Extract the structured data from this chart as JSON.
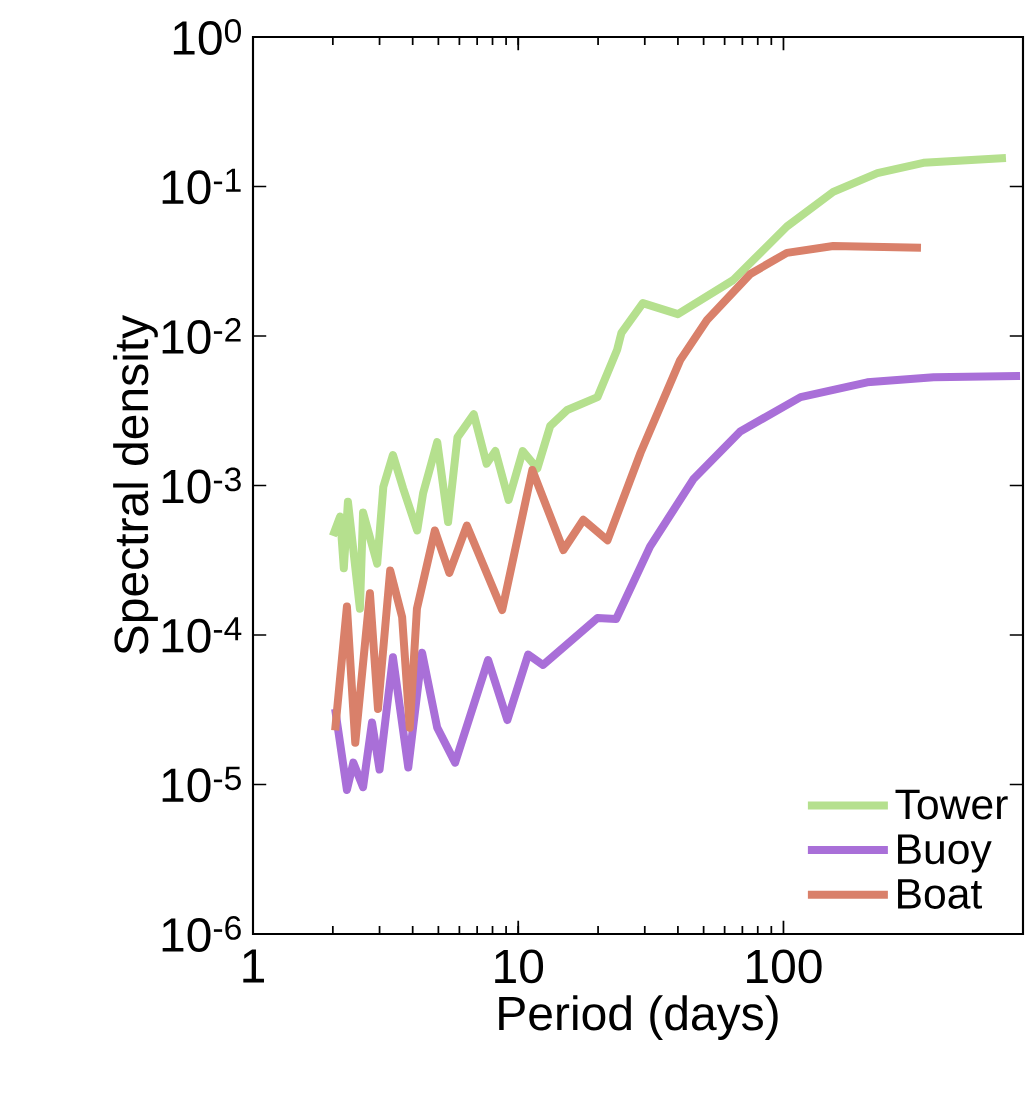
{
  "chart_data": {
    "type": "line",
    "xlabel": "Period (days)",
    "ylabel": "Spectral density",
    "log": "xy",
    "xlim": [
      1,
      800
    ],
    "ylim": [
      1e-06,
      1
    ],
    "xticks": [
      1,
      10,
      100
    ],
    "yticks": [
      {
        "value": 1,
        "label": "10$^{0}$"
      },
      {
        "value": 0.1,
        "label": "10$^{-1}$"
      },
      {
        "value": 0.01,
        "label": "10$^{-2}$"
      },
      {
        "value": 0.001,
        "label": "10$^{-3}$"
      },
      {
        "value": 0.0001,
        "label": "10$^{-4}$"
      },
      {
        "value": 1e-05,
        "label": "10$^{-5}$"
      },
      {
        "value": 1e-06,
        "label": "10$^{-6}$"
      }
    ],
    "legend": "bottom right",
    "series": [
      {
        "name": "Tower",
        "color": "#b5e08e",
        "x": [
          2.0,
          2.13,
          2.2,
          2.28,
          2.53,
          2.6,
          2.94,
          3.1,
          3.37,
          3.68,
          4.16,
          4.38,
          4.95,
          5.44,
          5.9,
          6.8,
          7.6,
          8.2,
          9.2,
          10.4,
          11.8,
          13.2,
          15.3,
          19.9,
          23.6,
          24.5,
          29.5,
          40,
          64.5,
          103,
          154,
          226,
          337,
          690
        ],
        "values": [
          0.00046,
          0.00062,
          0.00028,
          0.00078,
          0.00015,
          0.00066,
          0.0003,
          0.00098,
          0.0016,
          0.00096,
          0.0005,
          0.00089,
          0.00195,
          0.00057,
          0.0021,
          0.003,
          0.0014,
          0.0017,
          0.0008,
          0.0017,
          0.0013,
          0.0025,
          0.0032,
          0.0039,
          0.0081,
          0.0105,
          0.0166,
          0.014,
          0.0236,
          0.054,
          0.092,
          0.123,
          0.144,
          0.155
        ]
      },
      {
        "name": "Buoy",
        "color": "#a96fd8",
        "x": [
          2.04,
          2.26,
          2.39,
          2.6,
          2.81,
          3.0,
          3.37,
          3.85,
          4.34,
          4.95,
          5.78,
          7.7,
          9.1,
          10.9,
          12.4,
          19.9,
          23.4,
          31.4,
          45.7,
          68.7,
          116,
          207,
          368,
          780
        ],
        "values": [
          3.2e-05,
          9.2e-06,
          1.4e-05,
          9.6e-06,
          2.6e-05,
          1.26e-05,
          7.1e-05,
          1.3e-05,
          7.6e-05,
          2.4e-05,
          1.4e-05,
          6.8e-05,
          2.7e-05,
          7.4e-05,
          6.3e-05,
          0.00013,
          0.000128,
          0.00039,
          0.0011,
          0.0023,
          0.0039,
          0.0049,
          0.0053,
          0.0054
        ]
      },
      {
        "name": "Boat",
        "color": "#d9806a",
        "x": [
          2.04,
          2.26,
          2.43,
          2.76,
          2.96,
          3.29,
          3.65,
          3.9,
          4.15,
          4.85,
          5.5,
          6.4,
          8.7,
          11.3,
          14.8,
          17.6,
          21.7,
          28.9,
          40.8,
          51.5,
          75,
          103,
          154,
          330
        ],
        "values": [
          2.3e-05,
          0.000155,
          1.9e-05,
          0.00019,
          3.2e-05,
          0.00027,
          0.000132,
          2.4e-05,
          0.00015,
          0.0005,
          0.00026,
          0.00054,
          0.000147,
          0.00127,
          0.00037,
          0.00059,
          0.00043,
          0.00165,
          0.0069,
          0.0128,
          0.026,
          0.036,
          0.04,
          0.039
        ]
      }
    ]
  }
}
